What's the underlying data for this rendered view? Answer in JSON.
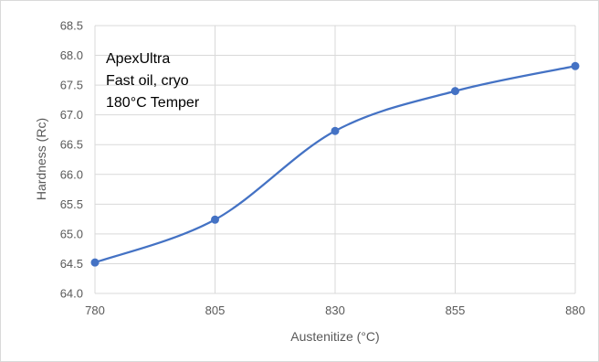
{
  "chart_data": {
    "type": "line",
    "title": "",
    "xlabel": "Austenitize (°C)",
    "ylabel": "Hardness (Rc)",
    "x": [
      780,
      805,
      830,
      855,
      880
    ],
    "xlim": [
      780,
      880
    ],
    "ylim": [
      64.0,
      68.5
    ],
    "xticks": [
      "780",
      "805",
      "830",
      "855",
      "880"
    ],
    "yticks": [
      "64.0",
      "64.5",
      "65.0",
      "65.5",
      "66.0",
      "66.5",
      "67.0",
      "67.5",
      "68.0",
      "68.5"
    ],
    "series": [
      {
        "values": [
          64.52,
          65.24,
          66.73,
          67.4,
          67.82
        ],
        "color": "#4472c4",
        "smooth": true,
        "markers": true
      }
    ],
    "grid": true,
    "annotation_lines": [
      "ApexUltra",
      "Fast oil, cryo",
      "180°C Temper"
    ]
  }
}
